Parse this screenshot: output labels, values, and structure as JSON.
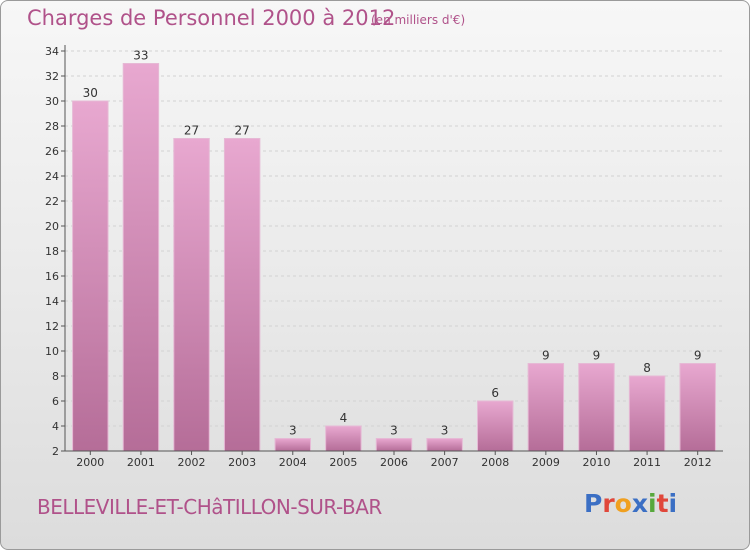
{
  "header": {
    "title": "Charges de Personnel 2000 à 2012",
    "subtitle": "(en milliers d'€)"
  },
  "footer": {
    "commune": "BELLEVILLE-ET-CHâTILLON-SUR-BAR",
    "logo": "Proxiti"
  },
  "colors": {
    "title": "#b0528a",
    "bar_light": "#e8a8d0",
    "bar_dark": "#b56d98",
    "logo": [
      "#3b6fc4",
      "#e0473a",
      "#f0a020",
      "#3b6fc4",
      "#57a83c",
      "#e0473a",
      "#3b6fc4"
    ]
  },
  "chart_data": {
    "type": "bar",
    "categories": [
      "2000",
      "2001",
      "2002",
      "2003",
      "2004",
      "2005",
      "2006",
      "2007",
      "2008",
      "2009",
      "2010",
      "2011",
      "2012"
    ],
    "values": [
      30,
      33,
      27,
      27,
      3,
      4,
      3,
      3,
      6,
      9,
      9,
      8,
      9
    ],
    "ylim": [
      2,
      34
    ],
    "yticks": [
      2,
      4,
      6,
      8,
      10,
      12,
      14,
      16,
      18,
      20,
      22,
      24,
      26,
      28,
      30,
      32,
      34
    ],
    "grid": true,
    "title": "Charges de Personnel 2000 à 2012",
    "xlabel": "",
    "ylabel": ""
  }
}
